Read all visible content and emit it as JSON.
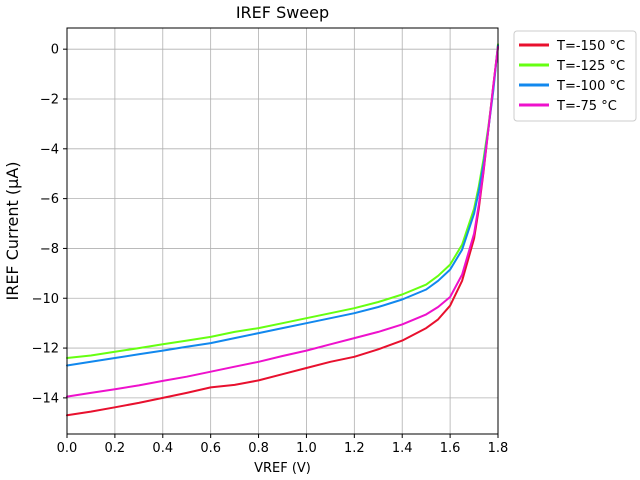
{
  "chart_data": {
    "type": "line",
    "title": "IREF Sweep",
    "xlabel": "VREF (V)",
    "ylabel": "IREF Current (µA)",
    "xlim": [
      0.0,
      1.8
    ],
    "ylim": [
      -15.45,
      0.85
    ],
    "x_ticks": [
      "0.0",
      "0.2",
      "0.4",
      "0.6",
      "0.8",
      "1.0",
      "1.2",
      "1.4",
      "1.6",
      "1.8"
    ],
    "y_ticks": [
      "0",
      "−2",
      "−4",
      "−6",
      "−8",
      "−10",
      "−12",
      "−14"
    ],
    "grid": true,
    "legend_position": "outside-top-right",
    "series": [
      {
        "name": "T=-150 °C",
        "color": "#e8102e",
        "x": [
          0.0,
          0.1,
          0.2,
          0.3,
          0.4,
          0.5,
          0.6,
          0.7,
          0.8,
          0.9,
          1.0,
          1.1,
          1.2,
          1.3,
          1.4,
          1.5,
          1.55,
          1.6,
          1.65,
          1.7,
          1.72,
          1.74,
          1.76,
          1.78,
          1.8
        ],
        "y": [
          -14.7,
          -14.55,
          -14.38,
          -14.2,
          -14.0,
          -13.8,
          -13.58,
          -13.48,
          -13.3,
          -13.05,
          -12.8,
          -12.55,
          -12.35,
          -12.05,
          -11.7,
          -11.2,
          -10.85,
          -10.3,
          -9.3,
          -7.6,
          -6.4,
          -4.9,
          -3.2,
          -1.5,
          0.1
        ]
      },
      {
        "name": "T=-125 °C",
        "color": "#66ff11",
        "x": [
          0.0,
          0.1,
          0.2,
          0.3,
          0.4,
          0.5,
          0.6,
          0.7,
          0.8,
          0.9,
          1.0,
          1.1,
          1.2,
          1.3,
          1.4,
          1.5,
          1.55,
          1.6,
          1.65,
          1.7,
          1.72,
          1.74,
          1.76,
          1.78,
          1.8
        ],
        "y": [
          -12.4,
          -12.3,
          -12.15,
          -12.0,
          -11.85,
          -11.7,
          -11.55,
          -11.35,
          -11.2,
          -11.0,
          -10.8,
          -10.6,
          -10.4,
          -10.15,
          -9.85,
          -9.45,
          -9.1,
          -8.65,
          -7.85,
          -6.4,
          -5.5,
          -4.4,
          -3.1,
          -1.6,
          0.2
        ]
      },
      {
        "name": "T=-100 °C",
        "color": "#1188ee",
        "x": [
          0.0,
          0.1,
          0.2,
          0.3,
          0.4,
          0.5,
          0.6,
          0.7,
          0.8,
          0.9,
          1.0,
          1.1,
          1.2,
          1.3,
          1.4,
          1.5,
          1.55,
          1.6,
          1.65,
          1.7,
          1.72,
          1.74,
          1.76,
          1.78,
          1.8
        ],
        "y": [
          -12.7,
          -12.55,
          -12.4,
          -12.25,
          -12.1,
          -11.95,
          -11.8,
          -11.6,
          -11.4,
          -11.2,
          -11.0,
          -10.8,
          -10.6,
          -10.35,
          -10.05,
          -9.65,
          -9.3,
          -8.85,
          -8.05,
          -6.6,
          -5.7,
          -4.6,
          -3.2,
          -1.7,
          0.15
        ]
      },
      {
        "name": "T=-75 °C",
        "color": "#ee11cc",
        "x": [
          0.0,
          0.1,
          0.2,
          0.3,
          0.4,
          0.5,
          0.6,
          0.7,
          0.8,
          0.9,
          1.0,
          1.1,
          1.2,
          1.3,
          1.4,
          1.5,
          1.55,
          1.6,
          1.65,
          1.7,
          1.72,
          1.74,
          1.76,
          1.78,
          1.8
        ],
        "y": [
          -13.95,
          -13.8,
          -13.65,
          -13.5,
          -13.32,
          -13.15,
          -12.95,
          -12.75,
          -12.55,
          -12.32,
          -12.1,
          -11.85,
          -11.6,
          -11.35,
          -11.05,
          -10.65,
          -10.35,
          -9.95,
          -9.05,
          -7.4,
          -6.25,
          -4.85,
          -3.2,
          -1.5,
          0.1
        ]
      }
    ]
  }
}
